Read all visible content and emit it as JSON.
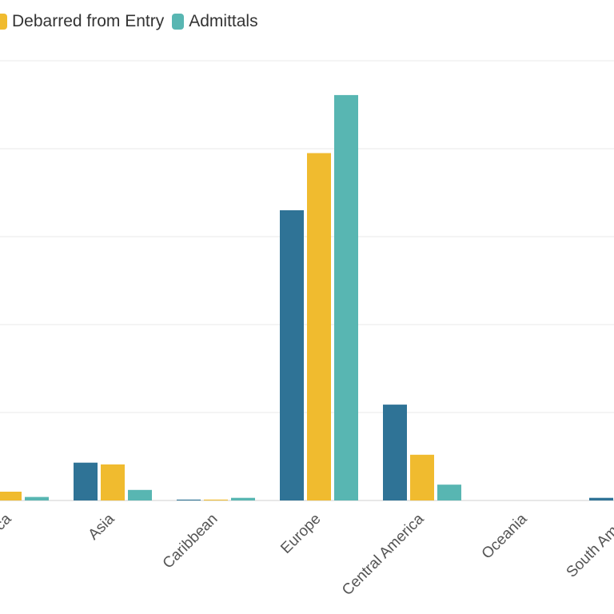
{
  "legend": {
    "items": [
      {
        "label": "Debarred from Entry",
        "color": "#f0bb2f"
      },
      {
        "label": "Admittals",
        "color": "#58b6b2"
      }
    ]
  },
  "chart_data": {
    "type": "bar",
    "y_units": "no y-axis values are visible; heights are in pixel-equivalent units (0 = baseline, 500 = topmost gridline)",
    "categories": [
      "ca",
      "Asia",
      "Caribbean",
      "Europe",
      "Central America",
      "Oceania",
      "South Ameri"
    ],
    "series": [
      {
        "name": "",
        "color": "#2f7396",
        "values": [
          0,
          43,
          1,
          330,
          109,
          0,
          3
        ]
      },
      {
        "name": "Debarred from Entry",
        "color": "#f0bb2f",
        "values": [
          10,
          41,
          1,
          395,
          52,
          0,
          0
        ]
      },
      {
        "name": "Admittals",
        "color": "#58b6b2",
        "values": [
          4,
          12,
          3,
          461,
          18,
          0,
          0
        ]
      }
    ],
    "ylim": [
      0,
      550
    ],
    "gridlines": [
      0,
      100,
      200,
      300,
      400,
      500
    ],
    "grid": true,
    "legend_position": "top"
  }
}
